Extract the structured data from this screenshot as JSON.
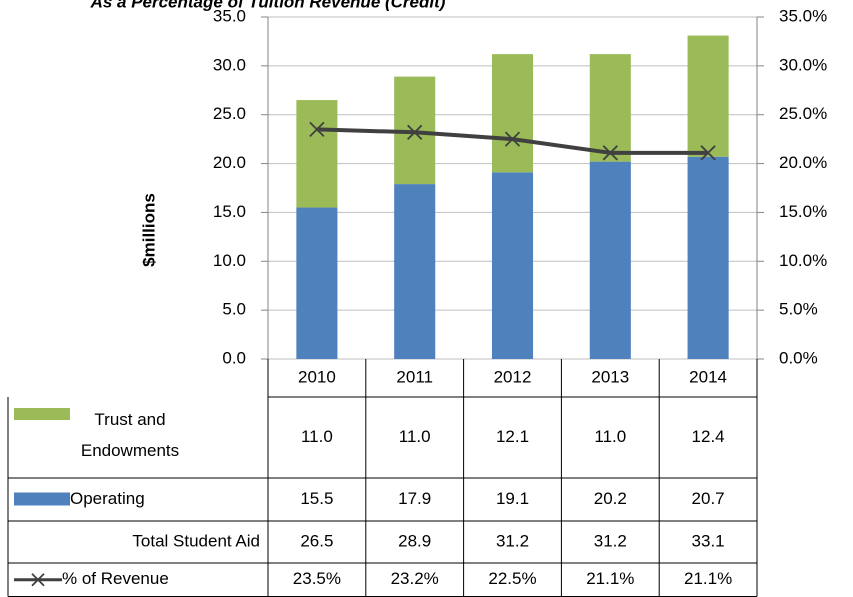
{
  "chart_data": {
    "type": "bar",
    "title": "As a Percentage of Tuition Revenue (Credit)",
    "y_label": "$millions",
    "categories": [
      "2010",
      "2011",
      "2012",
      "2013",
      "2014"
    ],
    "stacked": true,
    "series": [
      {
        "name": "Trust and Endowments",
        "color": "#9bbb59",
        "values": [
          11.0,
          11.0,
          12.1,
          11.0,
          12.4
        ],
        "value_labels": [
          "11.0",
          "11.0",
          "12.1",
          "11.0",
          "12.4"
        ]
      },
      {
        "name": "Operating",
        "color": "#4f81bd",
        "values": [
          15.5,
          17.9,
          19.1,
          20.2,
          20.7
        ],
        "value_labels": [
          "15.5",
          "17.9",
          "19.1",
          "20.2",
          "20.7"
        ]
      },
      {
        "name": "% of Revenue",
        "type": "line",
        "axis": "y2",
        "color": "#404040",
        "values": [
          23.5,
          23.2,
          22.5,
          21.1,
          21.1
        ],
        "value_labels": [
          "23.5%",
          "23.2%",
          "22.5%",
          "21.1%",
          "21.1%"
        ]
      }
    ],
    "totals": {
      "name": "Total Student Aid",
      "values": [
        26.5,
        28.9,
        31.2,
        31.2,
        33.1
      ],
      "value_labels": [
        "26.5",
        "28.9",
        "31.2",
        "31.2",
        "33.1"
      ]
    },
    "ylim": [
      0,
      35
    ],
    "yticks": [
      {
        "value": 0,
        "label": "0.0"
      },
      {
        "value": 5,
        "label": "5.0"
      },
      {
        "value": 10,
        "label": "10.0"
      },
      {
        "value": 15,
        "label": "15.0"
      },
      {
        "value": 20,
        "label": "20.0"
      },
      {
        "value": 25,
        "label": "25.0"
      },
      {
        "value": 30,
        "label": "30.0"
      },
      {
        "value": 35,
        "label": "35.0"
      }
    ],
    "y2lim": [
      0,
      35
    ],
    "y2ticks": [
      {
        "value": 0,
        "label": "0.0%"
      },
      {
        "value": 5,
        "label": "5.0%"
      },
      {
        "value": 10,
        "label": "10.0%"
      },
      {
        "value": 15,
        "label": "15.0%"
      },
      {
        "value": 20,
        "label": "20.0%"
      },
      {
        "value": 25,
        "label": "25.0%"
      },
      {
        "value": 30,
        "label": "30.0%"
      },
      {
        "value": 35,
        "label": "35.0%"
      }
    ],
    "grid": true
  }
}
